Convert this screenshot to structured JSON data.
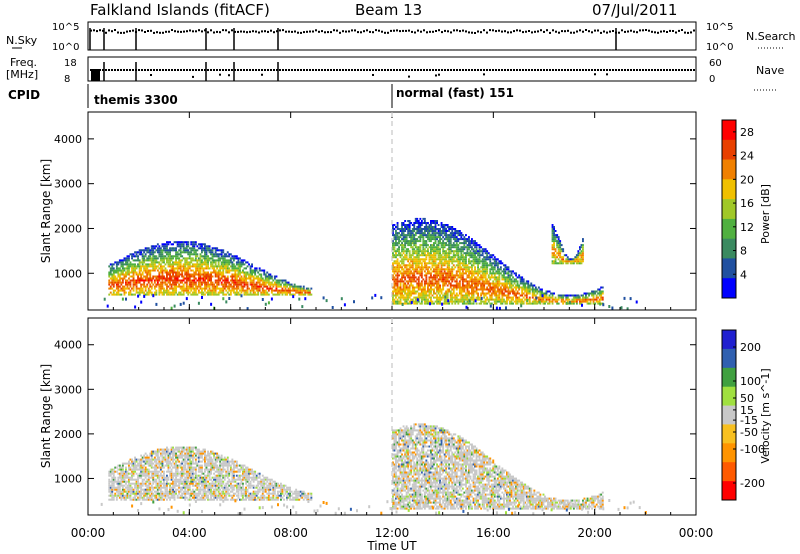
{
  "header": {
    "station": "Falkland Islands (fitACF)",
    "beam": "Beam 13",
    "date": "07/Jul/2011"
  },
  "status_panels": {
    "nsky_label": "N.Sky",
    "nsky_ticks": [
      "10^5",
      "10^0"
    ],
    "nsearch_label": "N.Search",
    "nsearch_ticks": [
      "10^5",
      "10^0"
    ],
    "freq_label": "Freq.",
    "freq_unit": "[MHz]",
    "freq_ticks": [
      "18",
      "8"
    ],
    "nave_label": "Nave",
    "nave_ticks": [
      "60",
      "0"
    ],
    "cpid_label": "CPID",
    "cpid_segments": [
      {
        "name": "themis 3300",
        "start_hour": 0
      },
      {
        "name": "normal (fast) 151",
        "start_hour": 12
      }
    ]
  },
  "colors": {
    "power_scale": [
      "#0000ff",
      "#2050a0",
      "#3a8a60",
      "#50b040",
      "#a0c828",
      "#f0c000",
      "#f08000",
      "#e84000",
      "#ff0000"
    ],
    "velocity_scale": [
      "#ff0000",
      "#ff5a00",
      "#ff9400",
      "#f8c020",
      "#c8c8c8",
      "#a0e040",
      "#40a040",
      "#3060b0",
      "#2020d0"
    ],
    "ground_scatter": "#c8c8c8"
  },
  "chart_data": [
    {
      "type": "heatmap",
      "name": "power",
      "ylabel": "Slant Range [km]",
      "xlabel": "Time UT",
      "x_ticks": [
        "00:00",
        "04:00",
        "08:00",
        "12:00",
        "16:00",
        "20:00",
        "00:00"
      ],
      "xlim_hours": [
        0,
        24
      ],
      "y_ticks": [
        1000,
        2000,
        3000,
        4000
      ],
      "ylim_km": [
        180,
        4600
      ],
      "colorbar": {
        "label": "Power [dB]",
        "ticks": [
          4,
          8,
          12,
          16,
          20,
          24,
          28
        ],
        "range": [
          0,
          30
        ]
      },
      "scatter_regions": [
        {
          "t_start": 0.8,
          "t_end": 8.8,
          "r_low": 500,
          "r_high": 1700,
          "peak_power": 26
        },
        {
          "t_start": 12.0,
          "t_end": 20.3,
          "r_low": 300,
          "r_high": 2200,
          "peak_power": 24
        },
        {
          "t_start": 18.3,
          "t_end": 19.5,
          "r_low": 1200,
          "r_high": 2100,
          "peak_power": 22
        }
      ]
    },
    {
      "type": "heatmap",
      "name": "velocity",
      "ylabel": "Slant Range [km]",
      "xlabel": "Time UT",
      "x_ticks": [
        "00:00",
        "04:00",
        "08:00",
        "12:00",
        "16:00",
        "20:00",
        "00:00"
      ],
      "xlim_hours": [
        0,
        24
      ],
      "y_ticks": [
        1000,
        2000,
        3000,
        4000
      ],
      "ylim_km": [
        180,
        4600
      ],
      "colorbar": {
        "label": "Velocity [m s^-1]",
        "ticks": [
          200,
          100,
          50,
          15,
          -15,
          -50,
          -100,
          -200
        ],
        "range": [
          -250,
          250
        ]
      },
      "scatter_regions": [
        {
          "t_start": 0.8,
          "t_end": 8.8,
          "r_low": 500,
          "r_high": 1700,
          "dominant": "ground scatter"
        },
        {
          "t_start": 12.0,
          "t_end": 20.3,
          "r_low": 300,
          "r_high": 2200,
          "dominant": "ground scatter"
        }
      ]
    }
  ]
}
